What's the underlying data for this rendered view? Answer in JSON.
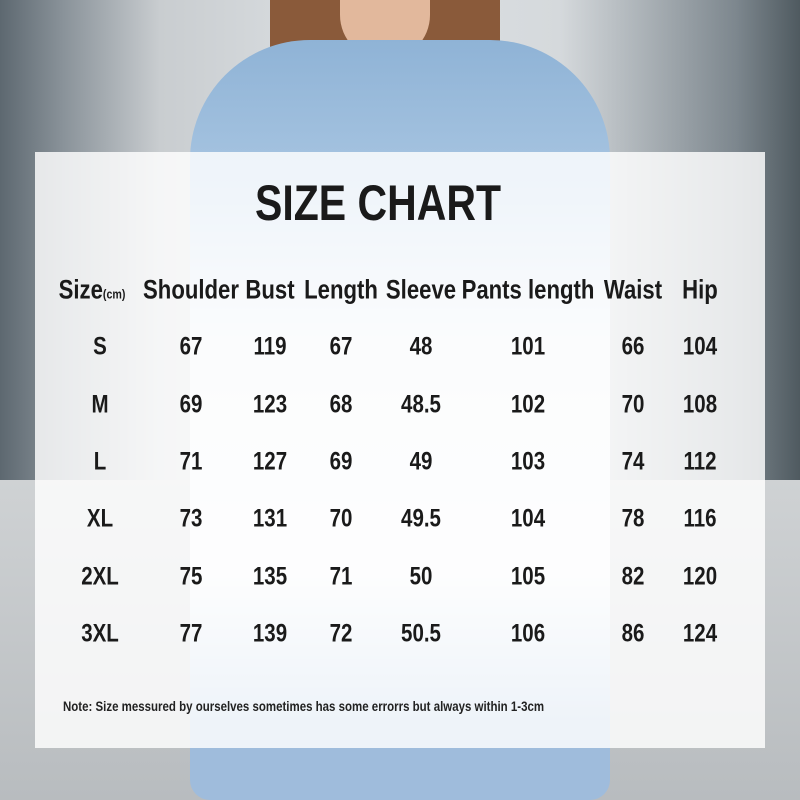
{
  "title": "SIZE CHART",
  "headers": [
    "Size",
    "Shoulder",
    "Bust",
    "Length",
    "Sleeve",
    "Pants length",
    "Waist",
    "Hip"
  ],
  "size_unit": "(cm)",
  "rows": [
    [
      "S",
      "67",
      "119",
      "67",
      "48",
      "101",
      "66",
      "104"
    ],
    [
      "M",
      "69",
      "123",
      "68",
      "48.5",
      "102",
      "70",
      "108"
    ],
    [
      "L",
      "71",
      "127",
      "69",
      "49",
      "103",
      "74",
      "112"
    ],
    [
      "XL",
      "73",
      "131",
      "70",
      "49.5",
      "104",
      "78",
      "116"
    ],
    [
      "2XL",
      "75",
      "135",
      "71",
      "50",
      "105",
      "82",
      "120"
    ],
    [
      "3XL",
      "77",
      "139",
      "72",
      "50.5",
      "106",
      "86",
      "124"
    ]
  ],
  "note": "Note:  Size messured by ourselves sometimes has some errorrs but always within 1-3cm"
}
